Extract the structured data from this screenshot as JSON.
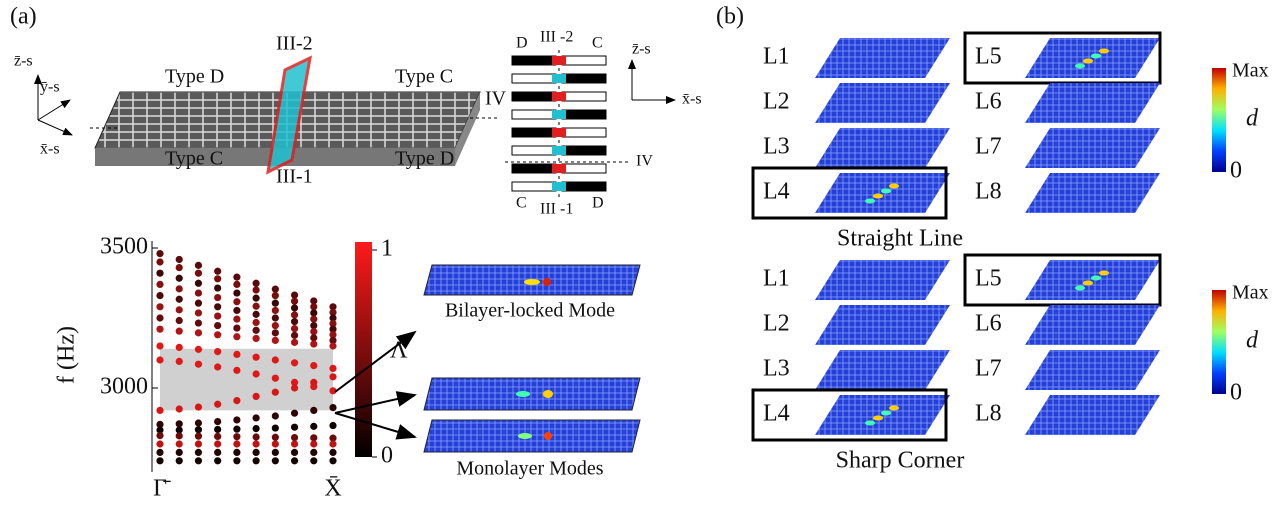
{
  "panel_a": {
    "label": "(a)",
    "structure": {
      "top_left": "Type D",
      "top_interface": "III-2",
      "top_right": "Type C",
      "side": "IV",
      "bottom_left": "Type C",
      "bottom_interface": "III-1",
      "bottom_right": "Type D",
      "axis_z": "z̄-s",
      "axis_y": "ȳ-s",
      "axis_x": "x̄-s"
    },
    "schematic": {
      "top_left": "D",
      "top_mid": "III -2",
      "top_right": "C",
      "side": "IV",
      "bottom_left": "C",
      "bottom_mid": "III -1",
      "bottom_right": "D",
      "axis_z": "z̄-s",
      "axis_x": "x̄-s"
    },
    "band_plot": {
      "type": "scatter",
      "y_label": "f (Hz)",
      "ylim": [
        2700,
        3525
      ],
      "yticks": [
        3000,
        3500
      ],
      "categories": [
        "Γ̄",
        null,
        null,
        null,
        null,
        null,
        null,
        null,
        null,
        "X̄"
      ],
      "bands": [
        {
          "color": "#5a0a0a",
          "values": [
            3480,
            3459,
            3438,
            3417,
            3396,
            3374,
            3353,
            3332,
            3311,
            3290
          ]
        },
        {
          "color": "#7a0c0c",
          "values": [
            3450,
            3430,
            3410,
            3390,
            3370,
            3350,
            3330,
            3310,
            3290,
            3270
          ]
        },
        {
          "color": "#3a0606",
          "values": [
            3410,
            3392,
            3374,
            3357,
            3339,
            3321,
            3303,
            3286,
            3268,
            3250
          ]
        },
        {
          "color": "#8a1010",
          "values": [
            3370,
            3354,
            3339,
            3323,
            3308,
            3292,
            3277,
            3261,
            3246,
            3230
          ]
        },
        {
          "color": "#4a0808",
          "values": [
            3330,
            3317,
            3303,
            3290,
            3277,
            3263,
            3250,
            3237,
            3223,
            3210
          ]
        },
        {
          "color": "#9a1212",
          "values": [
            3290,
            3279,
            3268,
            3257,
            3246,
            3234,
            3223,
            3212,
            3201,
            3190
          ]
        },
        {
          "color": "#600a0a",
          "values": [
            3250,
            3241,
            3232,
            3223,
            3214,
            3206,
            3197,
            3188,
            3179,
            3170
          ]
        },
        {
          "color": "#b01414",
          "values": [
            3210,
            3203,
            3197,
            3190,
            3183,
            3177,
            3170,
            3163,
            3157,
            3150
          ]
        },
        {
          "color": "#e01818",
          "values": [
            3150,
            3145,
            3138,
            3130,
            3120,
            3110,
            3100,
            3090,
            3080,
            3070
          ]
        },
        {
          "color": "#e01818",
          "values": [
            3100,
            3095,
            3085,
            3075,
            3063,
            3050,
            3035,
            3020,
            3005,
            2990
          ]
        },
        {
          "color": "#d81616",
          "values": [
            2920,
            2925,
            2932,
            2942,
            2955,
            2970,
            2985,
            3000,
            3020,
            3040
          ]
        },
        {
          "color": "#300404",
          "values": [
            2870,
            2872,
            2875,
            2880,
            2886,
            2893,
            2900,
            2910,
            2920,
            2930
          ]
        },
        {
          "color": "#100202",
          "values": [
            2850,
            2850,
            2851,
            2852,
            2853,
            2855,
            2857,
            2860,
            2863,
            2866
          ]
        },
        {
          "color": "#6a0a0a",
          "values": [
            2830,
            2829,
            2828,
            2827,
            2826,
            2825,
            2824,
            2823,
            2822,
            2821
          ]
        },
        {
          "color": "#c01414",
          "values": [
            2800,
            2800,
            2800,
            2800,
            2800,
            2800,
            2800,
            2800,
            2800,
            2800
          ]
        },
        {
          "color": "#200303",
          "values": [
            2770,
            2770,
            2770,
            2770,
            2770,
            2770,
            2770,
            2770,
            2770,
            2770
          ]
        },
        {
          "color": "#150202",
          "values": [
            2740,
            2740,
            2740,
            2740,
            2740,
            2740,
            2740,
            2740,
            2740,
            2740
          ]
        }
      ]
    },
    "colorbar": {
      "symbol": "Λ",
      "ticks": [
        0,
        1
      ]
    },
    "modes": {
      "bilayer": "Bilayer-locked Mode",
      "monolayer": "Monolayer Modes"
    }
  },
  "panel_b": {
    "label": "(b)",
    "panels": [
      {
        "title": "Straight Line",
        "layers": [
          "L1",
          "L2",
          "L3",
          "L4",
          "L5",
          "L6",
          "L7",
          "L8"
        ],
        "colorbar": {
          "max_label": "Max",
          "symbol": "d",
          "min_label": 0
        }
      },
      {
        "title": "Sharp Corner",
        "layers": [
          "L1",
          "L2",
          "L3",
          "L4",
          "L5",
          "L6",
          "L7",
          "L8"
        ],
        "colorbar": {
          "max_label": "Max",
          "symbol": "d",
          "min_label": 0
        }
      }
    ]
  }
}
